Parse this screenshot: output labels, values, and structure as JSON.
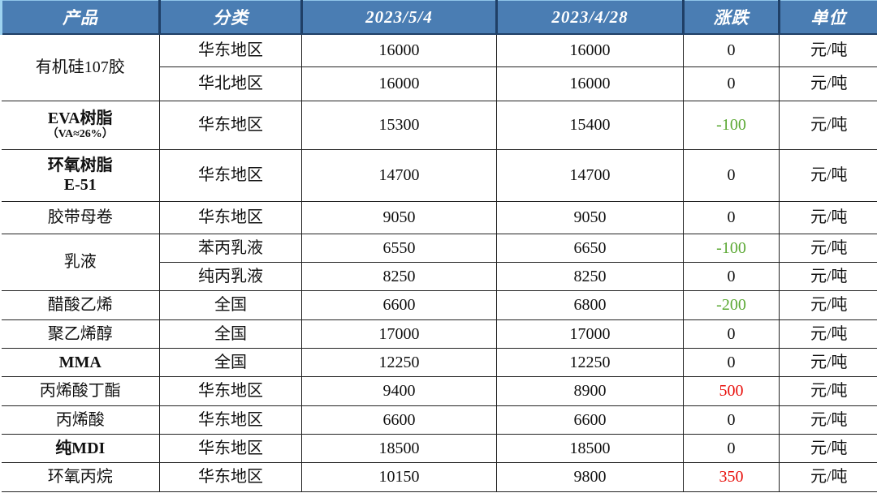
{
  "colors": {
    "header_bg": "#4a7db3",
    "down": "#5aa832",
    "up": "#e8100c"
  },
  "headers": [
    "产品",
    "分类",
    "2023/5/4",
    "2023/4/28",
    "涨跌",
    "单位"
  ],
  "rows": [
    {
      "product": "有机硅107胶",
      "region": "华东地区",
      "d1": "16000",
      "d2": "16000",
      "chg": "0",
      "unit": "元/吨"
    },
    {
      "region": "华北地区",
      "d1": "16000",
      "d2": "16000",
      "chg": "0",
      "unit": "元/吨"
    },
    {
      "product": "EVA树脂",
      "product_sub": "（VA≈26%）",
      "region": "华东地区",
      "d1": "15300",
      "d2": "15400",
      "chg": "-100",
      "unit": "元/吨"
    },
    {
      "product": "环氧树脂",
      "product_sub": "E-51",
      "region": "华东地区",
      "d1": "14700",
      "d2": "14700",
      "chg": "0",
      "unit": "元/吨"
    },
    {
      "product": "胶带母卷",
      "region": "华东地区",
      "d1": "9050",
      "d2": "9050",
      "chg": "0",
      "unit": "元/吨"
    },
    {
      "product": "乳液",
      "region": "苯丙乳液",
      "d1": "6550",
      "d2": "6650",
      "chg": "-100",
      "unit": "元/吨"
    },
    {
      "region": "纯丙乳液",
      "d1": "8250",
      "d2": "8250",
      "chg": "0",
      "unit": "元/吨"
    },
    {
      "product": "醋酸乙烯",
      "region": "全国",
      "d1": "6600",
      "d2": "6800",
      "chg": "-200",
      "unit": "元/吨"
    },
    {
      "product": "聚乙烯醇",
      "region": "全国",
      "d1": "17000",
      "d2": "17000",
      "chg": "0",
      "unit": "元/吨"
    },
    {
      "product": "MMA",
      "region": "全国",
      "d1": "12250",
      "d2": "12250",
      "chg": "0",
      "unit": "元/吨"
    },
    {
      "product": "丙烯酸丁酯",
      "region": "华东地区",
      "d1": "9400",
      "d2": "8900",
      "chg": "500",
      "unit": "元/吨"
    },
    {
      "product": "丙烯酸",
      "region": "华东地区",
      "d1": "6600",
      "d2": "6600",
      "chg": "0",
      "unit": "元/吨"
    },
    {
      "product": "纯MDI",
      "region": "华东地区",
      "d1": "18500",
      "d2": "18500",
      "chg": "0",
      "unit": "元/吨"
    },
    {
      "product": "环氧丙烷",
      "region": "华东地区",
      "d1": "10150",
      "d2": "9800",
      "chg": "350",
      "unit": "元/吨"
    }
  ]
}
